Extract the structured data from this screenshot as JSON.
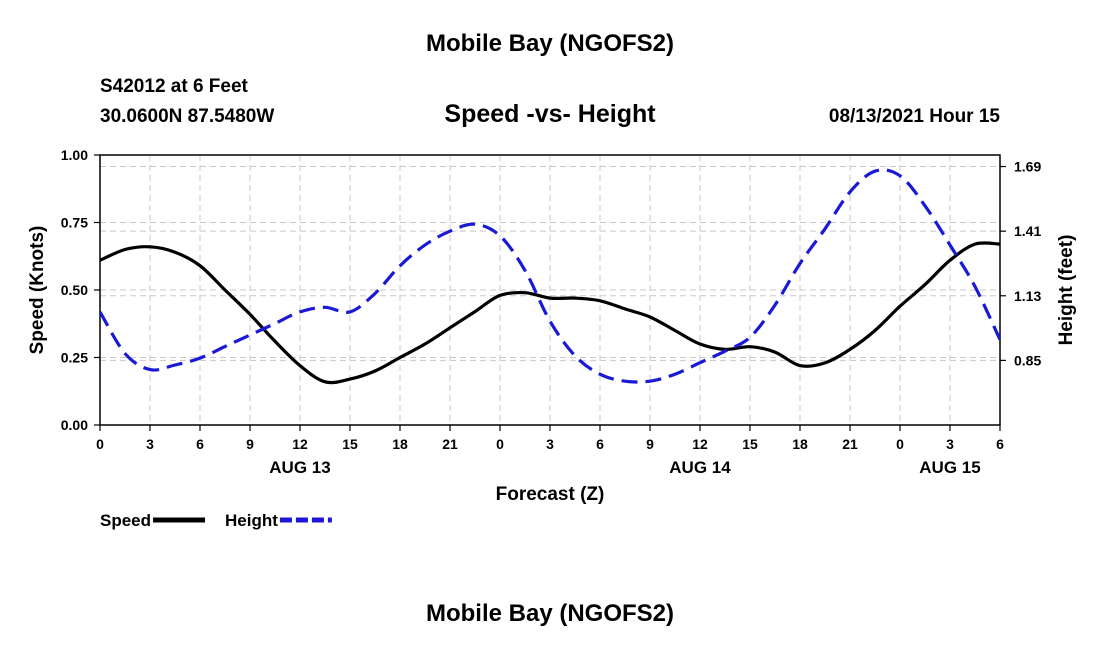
{
  "page": {
    "title_top": "Mobile Bay (NGOFS2)",
    "title_bottom": "Mobile Bay (NGOFS2)",
    "station": "S42012 at 6 Feet",
    "coords": "30.0600N  87.5480W",
    "timestamp": "08/13/2021 Hour 15"
  },
  "chart_data": {
    "type": "line",
    "title": "Speed -vs- Height",
    "xlabel": "Forecast (Z)",
    "ylabel": "Speed (Knots)",
    "y2label": "Height (feet)",
    "xlim": [
      0,
      54
    ],
    "ylim": [
      0,
      1.0
    ],
    "y2lim": [
      0.57,
      1.74
    ],
    "x_ticks": [
      0,
      3,
      6,
      9,
      12,
      15,
      18,
      21,
      24,
      27,
      30,
      33,
      36,
      39,
      42,
      45,
      48,
      51,
      54
    ],
    "x_tick_labels": [
      "0",
      "3",
      "6",
      "9",
      "12",
      "15",
      "18",
      "21",
      "0",
      "3",
      "6",
      "9",
      "12",
      "15",
      "18",
      "21",
      "0",
      "3",
      "6"
    ],
    "date_labels": [
      {
        "x": 12,
        "label": "AUG 13"
      },
      {
        "x": 36,
        "label": "AUG 14"
      },
      {
        "x": 51,
        "label": "AUG 15"
      }
    ],
    "y_ticks": [
      0.0,
      0.25,
      0.5,
      0.75,
      1.0
    ],
    "y_tick_labels": [
      "0.00",
      "0.25",
      "0.50",
      "0.75",
      "1.00"
    ],
    "y2_ticks": [
      0.85,
      1.13,
      1.41,
      1.69
    ],
    "y2_tick_labels": [
      "0.85",
      "1.13",
      "1.41",
      "1.69"
    ],
    "grid": true,
    "legend_position": "bottom-left",
    "series": [
      {
        "name": "Speed",
        "axis": "left",
        "color": "#000000",
        "dash": "solid",
        "x": [
          0,
          1.5,
          3,
          4.5,
          6,
          7.5,
          9,
          10.5,
          12,
          13.5,
          15,
          16.5,
          18,
          19.5,
          21,
          22.5,
          24,
          25.5,
          27,
          28.5,
          30,
          31.5,
          33,
          34.5,
          36,
          37.5,
          39,
          40.5,
          42,
          43.5,
          45,
          46.5,
          48,
          49.5,
          51,
          52.5,
          54
        ],
        "values": [
          0.61,
          0.65,
          0.66,
          0.64,
          0.59,
          0.5,
          0.41,
          0.31,
          0.22,
          0.16,
          0.17,
          0.2,
          0.25,
          0.3,
          0.36,
          0.42,
          0.48,
          0.49,
          0.47,
          0.47,
          0.46,
          0.43,
          0.4,
          0.35,
          0.3,
          0.28,
          0.29,
          0.27,
          0.22,
          0.23,
          0.28,
          0.35,
          0.44,
          0.52,
          0.61,
          0.67,
          0.67
        ]
      },
      {
        "name": "Height",
        "axis": "right",
        "color": "#1a1ad6",
        "dash": "dashed",
        "x": [
          0,
          1.5,
          3,
          4.5,
          6,
          7.5,
          9,
          10.5,
          12,
          13.5,
          15,
          16.5,
          18,
          19.5,
          21,
          22.5,
          24,
          25.5,
          27,
          28.5,
          30,
          31.5,
          33,
          34.5,
          36,
          37.5,
          39,
          40.5,
          42,
          43.5,
          45,
          46.5,
          48,
          49.5,
          51,
          52.5,
          54
        ],
        "values": [
          1.06,
          0.88,
          0.81,
          0.83,
          0.86,
          0.91,
          0.96,
          1.01,
          1.06,
          1.08,
          1.06,
          1.14,
          1.26,
          1.35,
          1.41,
          1.44,
          1.39,
          1.24,
          1.02,
          0.87,
          0.79,
          0.76,
          0.76,
          0.79,
          0.84,
          0.89,
          0.95,
          1.09,
          1.27,
          1.42,
          1.58,
          1.67,
          1.65,
          1.52,
          1.35,
          1.17,
          0.94
        ]
      }
    ]
  }
}
